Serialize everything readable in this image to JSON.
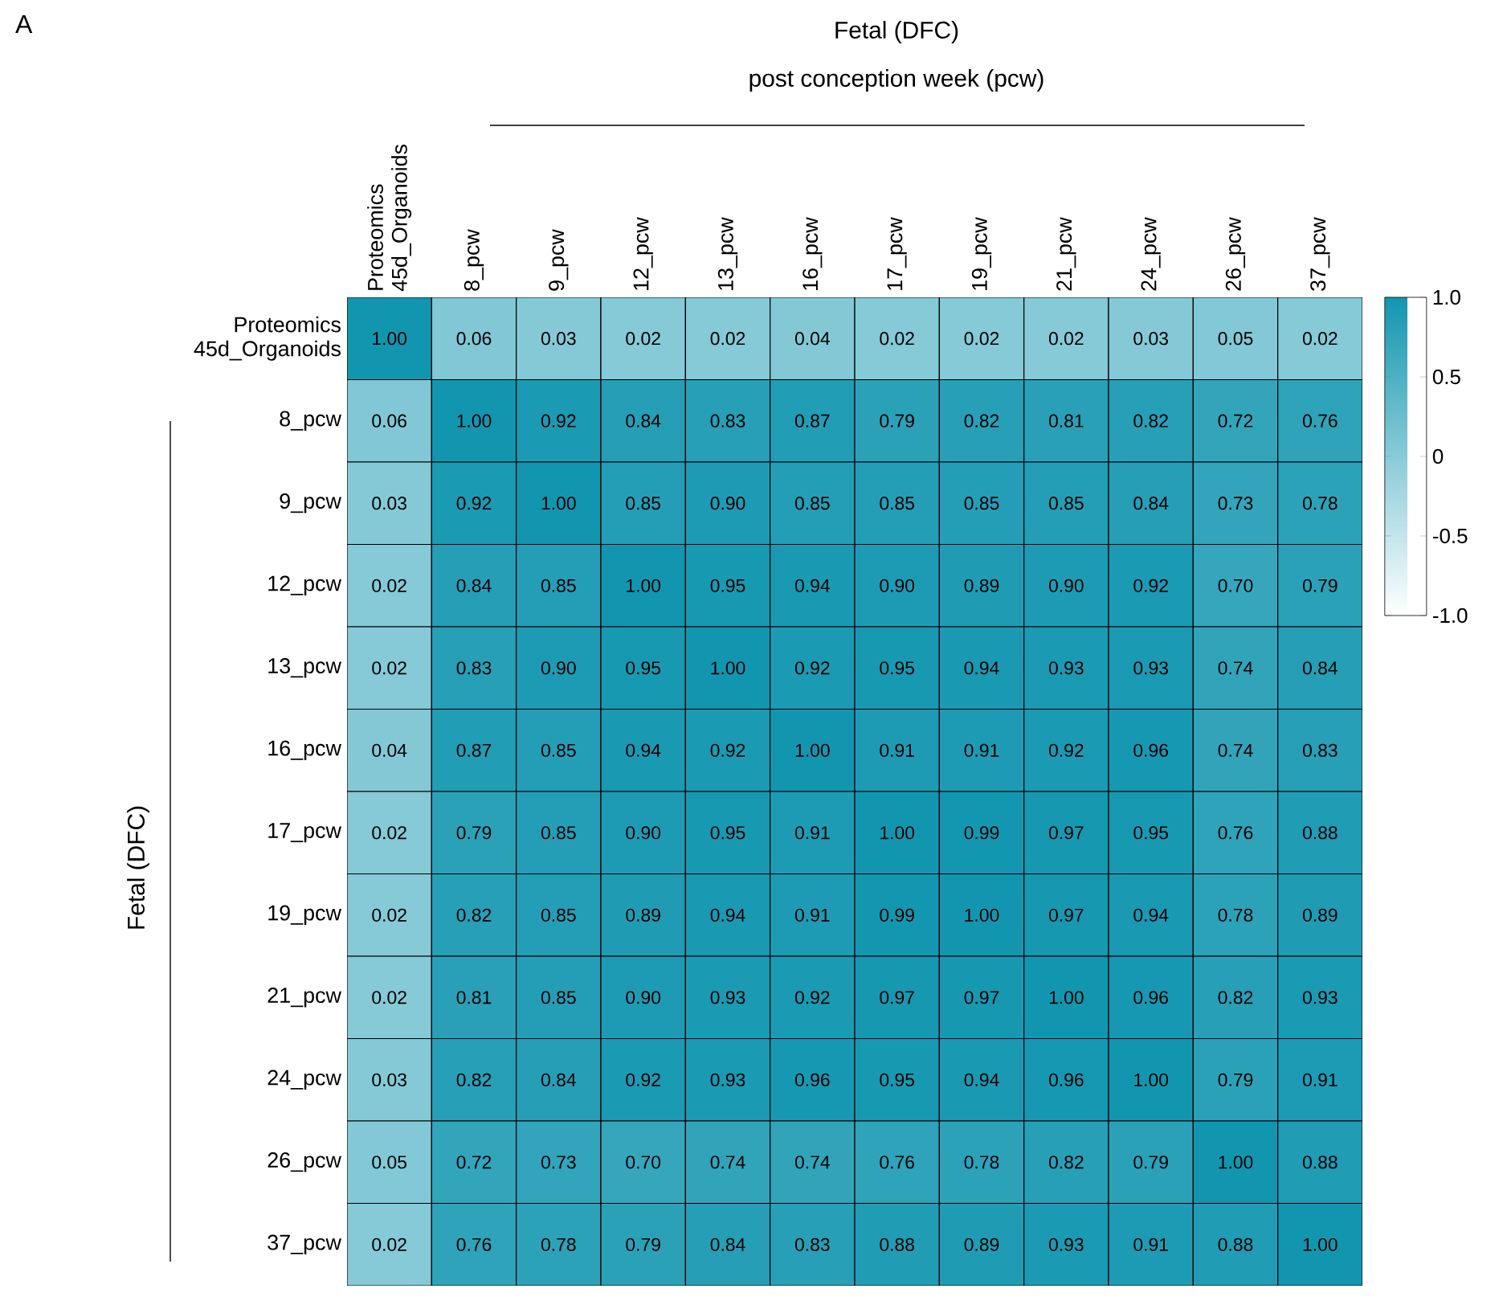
{
  "chart_data": {
    "type": "heatmap",
    "title": "Fetal (DFC)",
    "subtitle": "post conception week (pcw)",
    "ylabel": "Fetal (DFC)",
    "annotations": [
      "A"
    ],
    "categories": [
      "Proteomics 45d_Organoids",
      "8_pcw",
      "9_pcw",
      "12_pcw",
      "13_pcw",
      "16_pcw",
      "17_pcw",
      "19_pcw",
      "21_pcw",
      "24_pcw",
      "26_pcw",
      "37_pcw"
    ],
    "y_categories": [
      "Proteomics 45d_Organoids",
      "8_pcw",
      "9_pcw",
      "12_pcw",
      "13_pcw",
      "16_pcw",
      "17_pcw",
      "19_pcw",
      "21_pcw",
      "24_pcw",
      "26_pcw",
      "37_pcw"
    ],
    "cells": [
      [
        1.0,
        0.06,
        0.03,
        0.02,
        0.02,
        0.04,
        0.02,
        0.02,
        0.02,
        0.03,
        0.05,
        0.02
      ],
      [
        0.06,
        1.0,
        0.92,
        0.84,
        0.83,
        0.87,
        0.79,
        0.82,
        0.81,
        0.82,
        0.72,
        0.76
      ],
      [
        0.03,
        0.92,
        1.0,
        0.85,
        0.9,
        0.85,
        0.85,
        0.85,
        0.85,
        0.84,
        0.73,
        0.78
      ],
      [
        0.02,
        0.84,
        0.85,
        1.0,
        0.95,
        0.94,
        0.9,
        0.89,
        0.9,
        0.92,
        0.7,
        0.79
      ],
      [
        0.02,
        0.83,
        0.9,
        0.95,
        1.0,
        0.92,
        0.95,
        0.94,
        0.93,
        0.93,
        0.74,
        0.84
      ],
      [
        0.04,
        0.87,
        0.85,
        0.94,
        0.92,
        1.0,
        0.91,
        0.91,
        0.92,
        0.96,
        0.74,
        0.83
      ],
      [
        0.02,
        0.79,
        0.85,
        0.9,
        0.95,
        0.91,
        1.0,
        0.99,
        0.97,
        0.95,
        0.76,
        0.88
      ],
      [
        0.02,
        0.82,
        0.85,
        0.89,
        0.94,
        0.91,
        0.99,
        1.0,
        0.97,
        0.94,
        0.78,
        0.89
      ],
      [
        0.02,
        0.81,
        0.85,
        0.9,
        0.93,
        0.92,
        0.97,
        0.97,
        1.0,
        0.96,
        0.82,
        0.93
      ],
      [
        0.03,
        0.82,
        0.84,
        0.92,
        0.93,
        0.96,
        0.95,
        0.94,
        0.96,
        1.0,
        0.79,
        0.91
      ],
      [
        0.05,
        0.72,
        0.73,
        0.7,
        0.74,
        0.74,
        0.76,
        0.78,
        0.82,
        0.79,
        1.0,
        0.88
      ],
      [
        0.02,
        0.76,
        0.78,
        0.79,
        0.84,
        0.83,
        0.88,
        0.89,
        0.93,
        0.91,
        0.88,
        1.0
      ]
    ],
    "cell_labels": [
      [
        "1.00",
        "0.06",
        "0.03",
        "0.02",
        "0.02",
        "0.04",
        "0.02",
        "0.02",
        "0.02",
        "0.03",
        "0.05",
        "0.02"
      ],
      [
        "0.06",
        "1.00",
        "0.92",
        "0.84",
        "0.83",
        "0.87",
        "0.79",
        "0.82",
        "0.81",
        "0.82",
        "0.72",
        "0.76"
      ],
      [
        "0.03",
        "0.92",
        "1.00",
        "0.85",
        "0.90",
        "0.85",
        "0.85",
        "0.85",
        "0.85",
        "0.84",
        "0.73",
        "0.78"
      ],
      [
        "0.02",
        "0.84",
        "0.85",
        "1.00",
        "0.95",
        "0.94",
        "0.90",
        "0.89",
        "0.90",
        "0.92",
        "0.70",
        "0.79"
      ],
      [
        "0.02",
        "0.83",
        "0.90",
        "0.95",
        "1.00",
        "0.92",
        "0.95",
        "0.94",
        "0.93",
        "0.93",
        "0.74",
        "0.84"
      ],
      [
        "0.04",
        "0.87",
        "0.85",
        "0.94",
        "0.92",
        "1.00",
        "0.91",
        "0.91",
        "0.92",
        "0.96",
        "0.74",
        "0.83"
      ],
      [
        "0.02",
        "0.79",
        "0.85",
        "0.90",
        "0.95",
        "0.91",
        "1.00",
        "0.99",
        "0.97",
        "0.95",
        "0.76",
        "0.88"
      ],
      [
        "0.02",
        "0.82",
        "0.85",
        "0.89",
        "0.94",
        "0.91",
        "0.99",
        "1.00",
        "0.97",
        "0.94",
        "0.78",
        "0.89"
      ],
      [
        "0.02",
        "0.81",
        "0.85",
        "0.90",
        "0.93",
        "0.92",
        "0.97",
        "0.97",
        "1.00",
        "0.96",
        "0.82",
        "0.93"
      ],
      [
        "0.03",
        "0.82",
        "0.84",
        "0.92",
        "0.93",
        "0.96",
        "0.95",
        "0.94",
        "0.96",
        "1.00",
        "0.79",
        "0.91"
      ],
      [
        "0.05",
        "0.72",
        "0.73",
        "0.70",
        "0.74",
        "0.74",
        "0.76",
        "0.78",
        "0.82",
        "0.79",
        "1.00",
        "0.88"
      ],
      [
        "0.02",
        "0.76",
        "0.78",
        "0.79",
        "0.84",
        "0.83",
        "0.88",
        "0.89",
        "0.93",
        "0.91",
        "0.88",
        "1.00"
      ]
    ],
    "clim": [
      -1,
      1
    ],
    "cticks": [
      {
        "value": 1,
        "label": "1.0"
      },
      0.5,
      0,
      -0.5,
      {
        "value": -1,
        "label": "-1.0"
      }
    ]
  }
}
